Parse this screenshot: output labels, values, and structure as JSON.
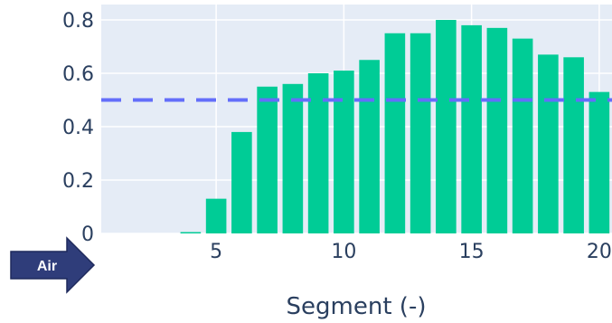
{
  "chart_data": {
    "type": "bar",
    "x": [
      1,
      2,
      3,
      4,
      5,
      6,
      7,
      8,
      9,
      10,
      11,
      12,
      13,
      14,
      15,
      16,
      17,
      18,
      19,
      20
    ],
    "values": [
      0.0,
      0.0,
      0.0,
      0.005,
      0.13,
      0.38,
      0.55,
      0.56,
      0.6,
      0.61,
      0.65,
      0.75,
      0.75,
      0.8,
      0.78,
      0.77,
      0.73,
      0.67,
      0.66,
      0.53
    ],
    "xlabel": "Segment (-)",
    "ylabel": "",
    "title": "",
    "xlim": [
      0.5,
      20.5
    ],
    "ylim": [
      0,
      0.8
    ],
    "x_ticks": [
      5,
      10,
      15,
      20
    ],
    "x_tick_labels": [
      "5",
      "10",
      "15",
      "20"
    ],
    "y_ticks": [
      0,
      0.2,
      0.4,
      0.6,
      0.8
    ],
    "y_tick_labels": [
      "0",
      "0.2",
      "0.4",
      "0.6",
      "0.8"
    ],
    "reference_line": {
      "y": 0.5,
      "style": "dashed",
      "color": "#636efa"
    },
    "bar_color": "#00cc96",
    "plot_background": "#e5ecf6",
    "grid": true
  },
  "annotation": {
    "arrow_label": "Air",
    "arrow_color": "#2f3d7a"
  }
}
